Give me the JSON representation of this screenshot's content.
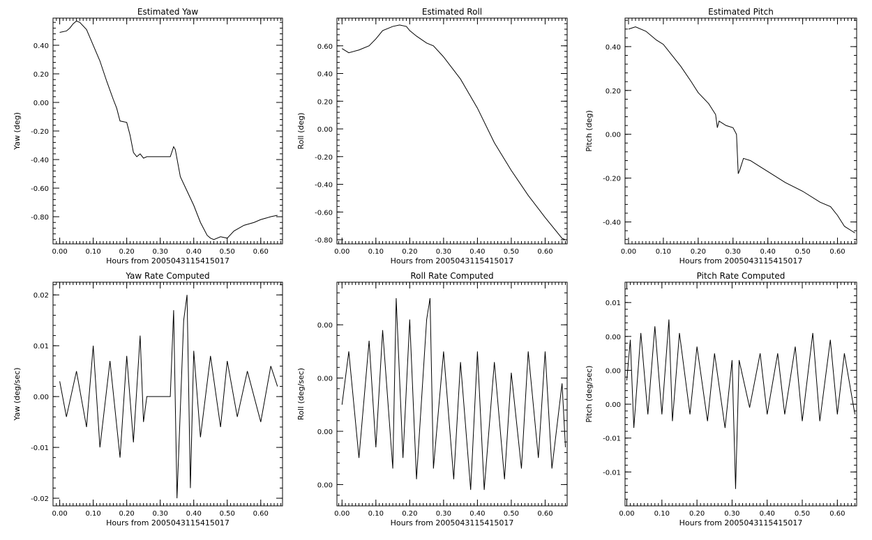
{
  "chart_data": [
    {
      "type": "line",
      "title": "Estimated Yaw",
      "xlabel": "Hours from 2005043115415017",
      "ylabel": "Yaw (deg)",
      "xlim": [
        -0.02,
        0.665
      ],
      "ylim": [
        -0.99,
        0.59
      ],
      "xticks": [
        "0.00",
        "0.10",
        "0.20",
        "0.30",
        "0.40",
        "0.50",
        "0.60"
      ],
      "xtick_values": [
        0,
        0.1,
        0.2,
        0.3,
        0.4,
        0.5,
        0.6
      ],
      "yticks": [
        "0.40",
        "0.20",
        "0.00",
        "-0.20",
        "-0.40",
        "-0.60",
        "-0.80"
      ],
      "ytick_values": [
        0.4,
        0.2,
        0,
        -0.2,
        -0.4,
        -0.6,
        -0.8
      ],
      "series": [
        {
          "x": [
            0,
            0.02,
            0.03,
            0.04,
            0.05,
            0.06,
            0.08,
            0.1,
            0.12,
            0.14,
            0.16,
            0.17,
            0.18,
            0.2,
            0.21,
            0.22,
            0.23,
            0.24,
            0.25,
            0.26,
            0.28,
            0.3,
            0.33,
            0.34,
            0.345,
            0.36,
            0.38,
            0.4,
            0.42,
            0.44,
            0.45,
            0.46,
            0.48,
            0.5,
            0.52,
            0.55,
            0.58,
            0.6,
            0.63,
            0.65
          ],
          "y": [
            0.49,
            0.5,
            0.52,
            0.55,
            0.57,
            0.56,
            0.51,
            0.4,
            0.29,
            0.15,
            0.02,
            -0.04,
            -0.13,
            -0.14,
            -0.23,
            -0.35,
            -0.38,
            -0.36,
            -0.39,
            -0.38,
            -0.38,
            -0.38,
            -0.38,
            -0.31,
            -0.33,
            -0.52,
            -0.62,
            -0.72,
            -0.84,
            -0.93,
            -0.95,
            -0.96,
            -0.94,
            -0.95,
            -0.9,
            -0.86,
            -0.84,
            -0.82,
            -0.8,
            -0.79
          ]
        }
      ]
    },
    {
      "type": "line",
      "title": "Estimated Roll",
      "xlabel": "Hours from 2005043115415017",
      "ylabel": "Roll (deg)",
      "xlim": [
        -0.015,
        0.665
      ],
      "ylim": [
        -0.83,
        0.8
      ],
      "xticks": [
        "0.00",
        "0.10",
        "0.20",
        "0.30",
        "0.40",
        "0.50",
        "0.60"
      ],
      "xtick_values": [
        0,
        0.1,
        0.2,
        0.3,
        0.4,
        0.5,
        0.6
      ],
      "yticks": [
        "0.60",
        "0.40",
        "0.20",
        "0.00",
        "-0.20",
        "-0.40",
        "-0.60",
        "-0.80"
      ],
      "ytick_values": [
        0.6,
        0.4,
        0.2,
        0,
        -0.2,
        -0.4,
        -0.6,
        -0.8
      ],
      "series": [
        {
          "x": [
            0,
            0.02,
            0.05,
            0.08,
            0.1,
            0.12,
            0.15,
            0.17,
            0.19,
            0.2,
            0.22,
            0.25,
            0.27,
            0.3,
            0.35,
            0.4,
            0.45,
            0.5,
            0.55,
            0.6,
            0.65,
            0.66
          ],
          "y": [
            0.58,
            0.55,
            0.57,
            0.6,
            0.65,
            0.71,
            0.74,
            0.75,
            0.74,
            0.71,
            0.67,
            0.62,
            0.6,
            0.52,
            0.36,
            0.15,
            -0.1,
            -0.3,
            -0.48,
            -0.64,
            -0.79,
            -0.8
          ]
        }
      ]
    },
    {
      "type": "line",
      "title": "Estimated Pitch",
      "xlabel": "Hours from 2005043115415017",
      "ylabel": "Pitch (deg)",
      "xlim": [
        -0.01,
        0.655
      ],
      "ylim": [
        -0.5,
        0.53
      ],
      "xticks": [
        "0.00",
        "0.10",
        "0.20",
        "0.30",
        "0.40",
        "0.50",
        "0.60"
      ],
      "xtick_values": [
        0,
        0.1,
        0.2,
        0.3,
        0.4,
        0.5,
        0.6
      ],
      "yticks": [
        "0.40",
        "0.20",
        "0.00",
        "-0.20",
        "-0.40"
      ],
      "ytick_values": [
        0.4,
        0.2,
        0,
        -0.2,
        -0.4
      ],
      "series": [
        {
          "x": [
            0,
            0.02,
            0.05,
            0.08,
            0.1,
            0.12,
            0.15,
            0.18,
            0.2,
            0.23,
            0.25,
            0.255,
            0.26,
            0.28,
            0.3,
            0.31,
            0.315,
            0.32,
            0.33,
            0.35,
            0.38,
            0.4,
            0.45,
            0.5,
            0.55,
            0.58,
            0.6,
            0.62,
            0.64,
            0.65
          ],
          "y": [
            0.48,
            0.49,
            0.47,
            0.43,
            0.41,
            0.37,
            0.31,
            0.24,
            0.19,
            0.14,
            0.09,
            0.03,
            0.06,
            0.04,
            0.03,
            0.0,
            -0.18,
            -0.16,
            -0.11,
            -0.12,
            -0.15,
            -0.17,
            -0.22,
            -0.26,
            -0.31,
            -0.33,
            -0.37,
            -0.42,
            -0.44,
            -0.45
          ]
        }
      ]
    },
    {
      "type": "line",
      "title": "Yaw Rate Computed",
      "xlabel": "Hours from 2005043115415017",
      "ylabel": "Yaw (deg/sec)",
      "xlim": [
        -0.02,
        0.665
      ],
      "ylim": [
        -0.0215,
        0.0225
      ],
      "xticks": [
        "0.00",
        "0.10",
        "0.20",
        "0.30",
        "0.40",
        "0.50",
        "0.60"
      ],
      "xtick_values": [
        0,
        0.1,
        0.2,
        0.3,
        0.4,
        0.5,
        0.6
      ],
      "yticks": [
        "0.02",
        "0.01",
        "0.00",
        "-0.01",
        "-0.02"
      ],
      "ytick_values": [
        0.02,
        0.01,
        0,
        -0.01,
        -0.02
      ],
      "series": [
        {
          "x": [
            0,
            0.02,
            0.05,
            0.08,
            0.1,
            0.12,
            0.15,
            0.18,
            0.2,
            0.22,
            0.24,
            0.25,
            0.26,
            0.3,
            0.33,
            0.34,
            0.35,
            0.37,
            0.38,
            0.39,
            0.4,
            0.42,
            0.45,
            0.48,
            0.5,
            0.53,
            0.56,
            0.6,
            0.63,
            0.65
          ],
          "y": [
            0.003,
            -0.004,
            0.005,
            -0.006,
            0.01,
            -0.01,
            0.007,
            -0.012,
            0.008,
            -0.009,
            0.012,
            -0.005,
            0,
            0,
            0,
            0.017,
            -0.02,
            0.015,
            0.02,
            -0.018,
            0.009,
            -0.008,
            0.008,
            -0.006,
            0.007,
            -0.004,
            0.005,
            -0.005,
            0.006,
            0.002
          ]
        }
      ]
    },
    {
      "type": "line",
      "title": "Roll Rate Computed",
      "xlabel": "Hours from 2005043115415017",
      "ylabel": "Roll (deg/sec)",
      "xlim": [
        -0.015,
        0.665
      ],
      "ylim": [
        -0.0085,
        0.0125
      ],
      "xticks": [
        "0.00",
        "0.10",
        "0.20",
        "0.30",
        "0.40",
        "0.50",
        "0.60"
      ],
      "xtick_values": [
        0,
        0.1,
        0.2,
        0.3,
        0.4,
        0.5,
        0.6
      ],
      "yticks": [
        "0.00",
        "0.00",
        "0.00",
        "0.00"
      ],
      "ytick_values": [
        0.0085,
        0.0035,
        -0.0015,
        -0.0065
      ],
      "series": [
        {
          "x": [
            0,
            0.02,
            0.05,
            0.08,
            0.1,
            0.12,
            0.15,
            0.16,
            0.18,
            0.2,
            0.22,
            0.25,
            0.26,
            0.27,
            0.3,
            0.33,
            0.35,
            0.38,
            0.4,
            0.42,
            0.45,
            0.48,
            0.5,
            0.53,
            0.55,
            0.58,
            0.6,
            0.62,
            0.65,
            0.66
          ],
          "y": [
            0.001,
            0.006,
            -0.004,
            0.007,
            -0.003,
            0.008,
            -0.005,
            0.011,
            -0.004,
            0.009,
            -0.006,
            0.009,
            0.011,
            -0.005,
            0.006,
            -0.006,
            0.005,
            -0.007,
            0.006,
            -0.007,
            0.005,
            -0.006,
            0.004,
            -0.005,
            0.006,
            -0.004,
            0.006,
            -0.005,
            0.003,
            -0.003
          ]
        }
      ]
    },
    {
      "type": "line",
      "title": "Pitch Rate Computed",
      "xlabel": "Hours from 2005043115415017",
      "ylabel": "Pitch (deg/sec)",
      "xlim": [
        -0.005,
        0.655
      ],
      "ylim": [
        -0.0175,
        0.0155
      ],
      "xticks": [
        "0.00",
        "0.10",
        "0.20",
        "0.30",
        "0.40",
        "0.50",
        "0.60"
      ],
      "xtick_values": [
        0,
        0.1,
        0.2,
        0.3,
        0.4,
        0.5,
        0.6
      ],
      "yticks": [
        "0.01",
        "0.00",
        "0.00",
        "0.00",
        "-0.01",
        "-0.01"
      ],
      "ytick_values": [
        0.0125,
        0.0075,
        0.0025,
        -0.0025,
        -0.0075,
        -0.0125
      ],
      "series": [
        {
          "x": [
            0,
            0.01,
            0.02,
            0.04,
            0.06,
            0.08,
            0.1,
            0.12,
            0.13,
            0.15,
            0.18,
            0.2,
            0.23,
            0.25,
            0.28,
            0.3,
            0.31,
            0.32,
            0.35,
            0.38,
            0.4,
            0.43,
            0.45,
            0.48,
            0.5,
            0.53,
            0.55,
            0.58,
            0.6,
            0.62,
            0.65
          ],
          "y": [
            0.001,
            0.007,
            -0.006,
            0.008,
            -0.004,
            0.009,
            -0.004,
            0.01,
            -0.005,
            0.008,
            -0.004,
            0.006,
            -0.005,
            0.005,
            -0.006,
            0.004,
            -0.015,
            0.004,
            -0.003,
            0.005,
            -0.004,
            0.005,
            -0.004,
            0.006,
            -0.005,
            0.008,
            -0.005,
            0.007,
            -0.004,
            0.005,
            -0.004
          ]
        }
      ]
    }
  ]
}
